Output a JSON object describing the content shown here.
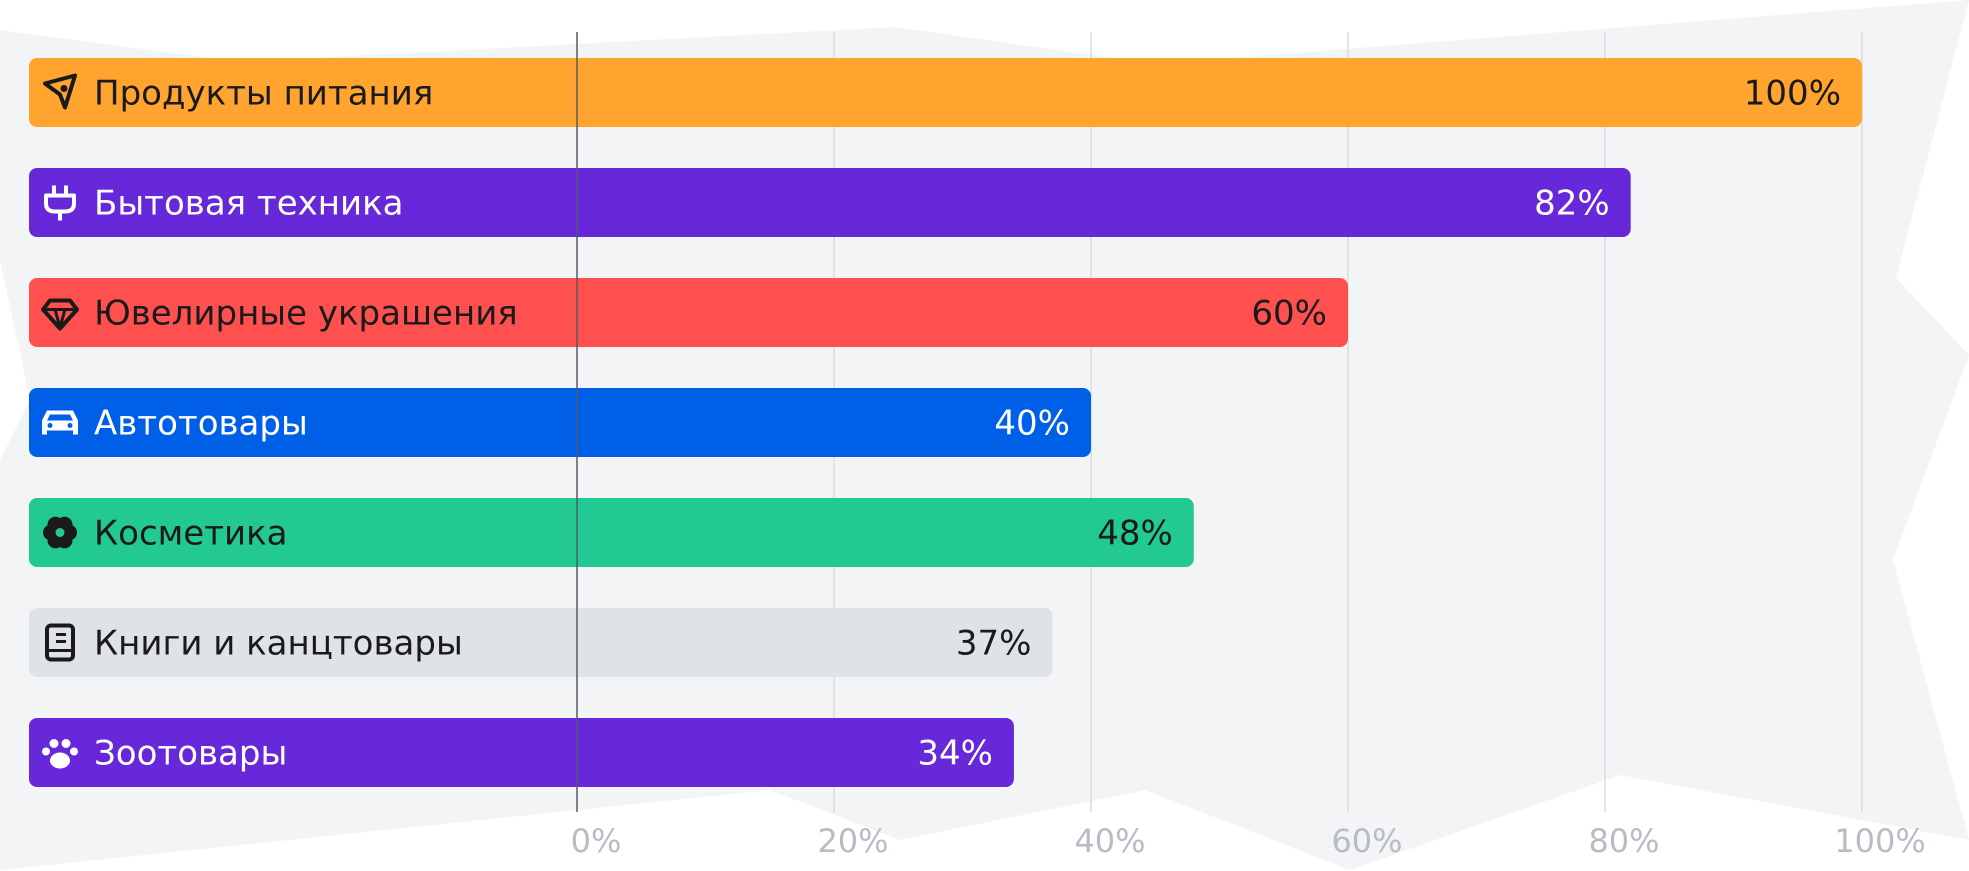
{
  "chart_data": {
    "type": "bar",
    "orientation": "horizontal",
    "categories": [
      "Продукты питания",
      "Бытовая техника",
      "Ювелирные украшения",
      "Автотовары",
      "Косметика",
      "Книги и канцтовары",
      "Зоотовары"
    ],
    "values": [
      100,
      82,
      60,
      40,
      48,
      37,
      34
    ],
    "value_labels": [
      "100%",
      "82%",
      "60%",
      "40%",
      "48%",
      "37%",
      "34%"
    ],
    "icons": [
      "rocket-icon",
      "plug-icon",
      "diamond-icon",
      "car-icon",
      "flower-icon",
      "book-icon",
      "paw-icon"
    ],
    "colors": [
      "#ffa52f",
      "#6628d9",
      "#ff5050",
      "#005fe7",
      "#22c993",
      "#dfe2e6",
      "#6628d9"
    ],
    "text_colors": [
      "#1a1a1a",
      "#ffffff",
      "#1a1a1a",
      "#ffffff",
      "#1a1a1a",
      "#1a1a1a",
      "#ffffff"
    ],
    "xticks": [
      "0%",
      "20%",
      "40%",
      "60%",
      "80%",
      "100%"
    ],
    "xlim": [
      0,
      100
    ],
    "grid": true,
    "title": "",
    "xlabel": "",
    "ylabel": ""
  }
}
